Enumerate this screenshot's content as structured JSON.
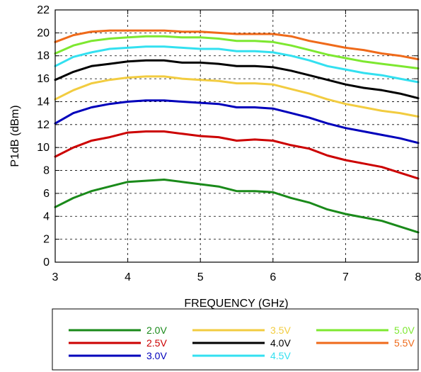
{
  "chart_data": {
    "type": "line",
    "title": "",
    "xlabel": "FREQUENCY (GHz)",
    "ylabel": "P1dB (dBm)",
    "xlim": [
      3,
      8
    ],
    "ylim": [
      0,
      22
    ],
    "xticks": [
      "3",
      "4",
      "5",
      "6",
      "7",
      "8"
    ],
    "yticks": [
      "0",
      "2",
      "4",
      "6",
      "8",
      "10",
      "12",
      "14",
      "16",
      "18",
      "20",
      "22"
    ],
    "grid": true,
    "legend_position": "bottom",
    "x": [
      3.0,
      3.25,
      3.5,
      3.75,
      4.0,
      4.25,
      4.5,
      4.75,
      5.0,
      5.25,
      5.5,
      5.75,
      6.0,
      6.25,
      6.5,
      6.75,
      7.0,
      7.25,
      7.5,
      7.75,
      8.0
    ],
    "series": [
      {
        "name": "2.0V",
        "color": "#1a8a1a",
        "values": [
          4.8,
          5.6,
          6.2,
          6.6,
          7.0,
          7.1,
          7.2,
          7.0,
          6.8,
          6.6,
          6.2,
          6.2,
          6.1,
          5.6,
          5.2,
          4.6,
          4.2,
          3.9,
          3.6,
          3.1,
          2.6
        ]
      },
      {
        "name": "2.5V",
        "color": "#cc0000",
        "values": [
          9.2,
          10.0,
          10.6,
          10.9,
          11.3,
          11.4,
          11.4,
          11.2,
          11.0,
          10.9,
          10.6,
          10.7,
          10.6,
          10.2,
          9.9,
          9.3,
          8.9,
          8.6,
          8.3,
          7.8,
          7.3
        ]
      },
      {
        "name": "3.0V",
        "color": "#0000bb",
        "values": [
          12.1,
          13.0,
          13.5,
          13.8,
          14.0,
          14.1,
          14.1,
          14.0,
          13.9,
          13.8,
          13.5,
          13.5,
          13.4,
          13.0,
          12.6,
          12.1,
          11.7,
          11.4,
          11.1,
          10.8,
          10.4
        ]
      },
      {
        "name": "3.5V",
        "color": "#f2cc40",
        "values": [
          14.2,
          15.0,
          15.6,
          15.9,
          16.1,
          16.2,
          16.2,
          16.0,
          15.9,
          15.8,
          15.6,
          15.6,
          15.5,
          15.1,
          14.7,
          14.2,
          13.8,
          13.5,
          13.2,
          13.0,
          12.7
        ]
      },
      {
        "name": "4.0V",
        "color": "#000000",
        "values": [
          15.9,
          16.6,
          17.1,
          17.3,
          17.5,
          17.6,
          17.6,
          17.4,
          17.4,
          17.3,
          17.1,
          17.1,
          17.0,
          16.7,
          16.3,
          15.9,
          15.5,
          15.2,
          15.0,
          14.7,
          14.3
        ]
      },
      {
        "name": "4.5V",
        "color": "#33e0f0",
        "values": [
          17.1,
          17.9,
          18.3,
          18.6,
          18.7,
          18.8,
          18.8,
          18.7,
          18.6,
          18.6,
          18.4,
          18.4,
          18.3,
          18.0,
          17.6,
          17.1,
          16.8,
          16.5,
          16.3,
          16.0,
          15.7
        ]
      },
      {
        "name": "5.0V",
        "color": "#7de830",
        "values": [
          18.2,
          18.9,
          19.3,
          19.5,
          19.6,
          19.7,
          19.7,
          19.6,
          19.6,
          19.5,
          19.3,
          19.3,
          19.2,
          18.9,
          18.5,
          18.1,
          17.8,
          17.5,
          17.3,
          17.1,
          16.9
        ]
      },
      {
        "name": "5.5V",
        "color": "#ef6a1a",
        "values": [
          19.2,
          19.8,
          20.1,
          20.2,
          20.2,
          20.2,
          20.2,
          20.1,
          20.1,
          20.0,
          19.9,
          19.9,
          19.9,
          19.7,
          19.3,
          19.0,
          18.7,
          18.5,
          18.2,
          18.0,
          17.7
        ]
      }
    ]
  }
}
